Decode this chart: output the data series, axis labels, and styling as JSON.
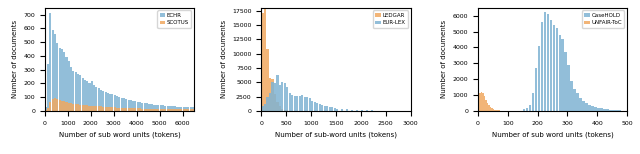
{
  "plot1": {
    "xlabel": "Number of sub word units (tokens)",
    "ylabel": "Number of documents",
    "legend": [
      "ECHR",
      "SCOTUS"
    ],
    "xlim": [
      0,
      6500
    ],
    "ylim": [
      0,
      750
    ],
    "yticks": [
      0,
      100,
      200,
      300,
      400,
      500,
      600,
      700
    ],
    "xticks": [
      0,
      1000,
      2000,
      3000,
      4000,
      5000,
      6000
    ],
    "echr_bins": [
      0,
      100,
      200,
      300,
      400,
      500,
      600,
      700,
      800,
      900,
      1000,
      1100,
      1200,
      1300,
      1400,
      1500,
      1600,
      1700,
      1800,
      1900,
      2000,
      2100,
      2200,
      2300,
      2400,
      2500,
      2600,
      2700,
      2800,
      2900,
      3000,
      3100,
      3200,
      3300,
      3400,
      3500,
      3600,
      3700,
      3800,
      3900,
      4000,
      4100,
      4200,
      4300,
      4400,
      4500,
      4600,
      4700,
      4800,
      4900,
      5000,
      5100,
      5200,
      5300,
      5400,
      5500,
      5600,
      5700,
      5800,
      5900,
      6000,
      6100,
      6200,
      6300,
      6400,
      6500
    ],
    "echr_vals": [
      30,
      340,
      710,
      590,
      560,
      490,
      460,
      450,
      430,
      390,
      360,
      320,
      290,
      280,
      265,
      260,
      240,
      225,
      215,
      200,
      215,
      190,
      175,
      165,
      155,
      145,
      140,
      130,
      125,
      120,
      115,
      105,
      100,
      95,
      90,
      85,
      80,
      80,
      75,
      70,
      65,
      65,
      60,
      55,
      55,
      50,
      50,
      45,
      45,
      42,
      42,
      40,
      38,
      36,
      35,
      33,
      32,
      31,
      30,
      29,
      28,
      27,
      26,
      25,
      25
    ],
    "scotus_vals": [
      10,
      20,
      65,
      85,
      90,
      85,
      80,
      75,
      70,
      65,
      60,
      55,
      50,
      50,
      48,
      45,
      43,
      42,
      40,
      38,
      38,
      36,
      35,
      33,
      32,
      30,
      30,
      28,
      27,
      26,
      25,
      24,
      23,
      22,
      22,
      21,
      20,
      20,
      19,
      19,
      18,
      18,
      17,
      17,
      17,
      16,
      16,
      15,
      15,
      15,
      14,
      14,
      14,
      13,
      13,
      13,
      13,
      12,
      12,
      12,
      12,
      11,
      11,
      11,
      11
    ]
  },
  "plot2": {
    "xlabel": "Number of sub-word units (tokens)",
    "ylabel": "Number of documents",
    "legend": [
      "EUR-LEX",
      "LEDGAR"
    ],
    "xlim": [
      0,
      3000
    ],
    "ylim": [
      0,
      18000
    ],
    "yticks": [
      0,
      2500,
      5000,
      7500,
      10000,
      12500,
      15000,
      17500
    ],
    "xticks": [
      0,
      500,
      1000,
      1500,
      2000,
      2500,
      3000
    ],
    "eurlex_bins": [
      0,
      50,
      100,
      150,
      200,
      250,
      300,
      350,
      400,
      450,
      500,
      550,
      600,
      650,
      700,
      750,
      800,
      850,
      900,
      950,
      1000,
      1050,
      1100,
      1150,
      1200,
      1250,
      1300,
      1350,
      1400,
      1450,
      1500,
      1600,
      1700,
      1800,
      1900,
      2000,
      2100,
      2200,
      2300,
      2400,
      2500,
      2600,
      2700,
      2800,
      2900,
      3000
    ],
    "eurlex_vals": [
      800,
      1200,
      2500,
      3200,
      5000,
      4800,
      6200,
      4500,
      5000,
      4800,
      4200,
      3200,
      2800,
      2600,
      2600,
      2600,
      2700,
      2500,
      2400,
      2200,
      1800,
      1600,
      1400,
      1200,
      1000,
      900,
      800,
      700,
      600,
      500,
      400,
      300,
      250,
      200,
      150,
      100,
      80,
      70,
      60,
      50,
      40,
      35,
      30,
      25,
      20
    ],
    "ledgar_vals": [
      17000,
      18500,
      10800,
      5800,
      5500,
      3000,
      1500,
      800,
      400,
      200,
      100,
      60,
      40,
      30,
      20,
      15,
      12,
      10,
      8,
      7,
      6,
      5,
      5,
      4,
      4,
      3,
      3,
      3,
      2,
      2,
      2,
      1,
      1,
      1,
      1,
      1,
      0,
      0,
      0,
      0,
      0,
      0,
      0,
      0,
      0
    ]
  },
  "plot3": {
    "xlabel": "Number of sub word units (tokens)",
    "ylabel": "Number of documents",
    "legend": [
      "CaseHOLD",
      "UNFAIR-ToC"
    ],
    "xlim": [
      0,
      500
    ],
    "ylim": [
      0,
      6500
    ],
    "yticks": [
      0,
      1000,
      2000,
      3000,
      4000,
      5000,
      6000
    ],
    "xticks": [
      0,
      100,
      200,
      300,
      400,
      500
    ],
    "casehold_left": [
      150,
      160,
      170,
      180,
      190,
      200,
      210,
      220,
      230,
      240,
      250,
      260,
      270,
      280,
      290,
      300,
      310,
      320,
      330,
      340,
      350,
      360,
      370,
      380,
      390,
      400,
      410,
      420,
      430,
      440,
      450,
      460,
      470,
      480,
      490
    ],
    "casehold_vals": [
      100,
      200,
      400,
      1100,
      2700,
      4100,
      5600,
      6200,
      6100,
      5700,
      5400,
      5200,
      4800,
      4500,
      3700,
      2900,
      1900,
      1400,
      1100,
      800,
      600,
      500,
      400,
      300,
      250,
      200,
      150,
      120,
      90,
      70,
      50,
      40,
      30,
      20,
      10
    ],
    "unfair_left": [
      0,
      5,
      10,
      15,
      20,
      25,
      30,
      35,
      40,
      45,
      50,
      55,
      60,
      65,
      70,
      75,
      80,
      85,
      90,
      95
    ],
    "unfair_vals": [
      700,
      1100,
      1200,
      1100,
      950,
      700,
      500,
      350,
      250,
      150,
      100,
      70,
      50,
      35,
      25,
      15,
      10,
      7,
      5,
      3
    ]
  },
  "blue_color": "#7fb3d3",
  "orange_color": "#f0a860"
}
